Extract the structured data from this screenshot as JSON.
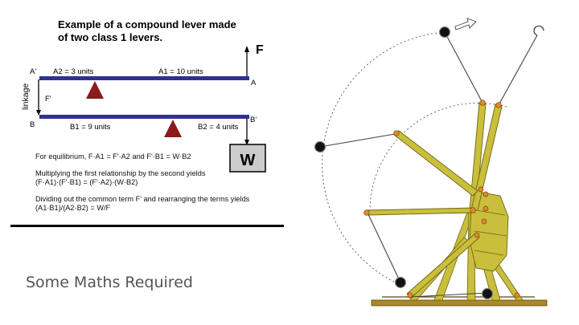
{
  "diagram": {
    "title_line1": "Example of a compound lever made",
    "title_line2": "of two class 1 levers.",
    "label_A_prime": "A'",
    "label_A": "A",
    "label_B": "B",
    "label_B_prime": "B'",
    "label_A2": "A2 = 3 units",
    "label_A1": "A1 = 10 units",
    "label_B1": "B1 = 9 units",
    "label_B2": "B2 = 4 units",
    "label_F_prime": "F'",
    "label_linkage": "linkage",
    "label_F": "F",
    "label_W": "W",
    "colors": {
      "beam": "#2e3192",
      "fulcrum": "#8b1a1a",
      "weight_box": "#cccccc"
    }
  },
  "equations": {
    "line1": "For equilibrium, F·A1 = F'·A2  and  F'·B1 = W·B2",
    "line2a": "Multiplying the first relationship by the second yields",
    "line2b": "(F·A1)·(F'·B1) = (F'·A2)·(W·B2)",
    "line3a": "Dividing out the common term F' and rearranging the terms yields",
    "line3b": "(A1·B1)/(A2·B2) = W/F"
  },
  "slide_title": "Some Maths Required",
  "trebuchet": {
    "colors": {
      "frame": "#c9bf3c",
      "frame_stroke": "#6e6514",
      "joint": "#e08a2c",
      "ball": "#111111",
      "base": "#a88a2a"
    }
  }
}
